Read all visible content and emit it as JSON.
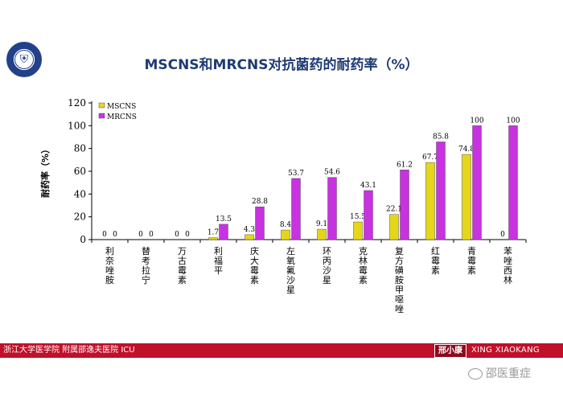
{
  "footer": {
    "left_text": "浙江大学医学院 附属邵逸夫医院 ICU",
    "badge_text": "邢小康",
    "right_text": "XING XIAOKANG"
  },
  "watermark": {
    "text": "邵医重症",
    "icon": "wechat-icon"
  },
  "logo": {
    "icon": "university-seal-icon"
  },
  "colors": {
    "mscns": "#e6d619",
    "mrcns": "#c832e0",
    "footer_bar": "#c0102a",
    "title": "#1f3b73"
  },
  "chart_data": {
    "type": "bar",
    "title": "MSCNS和MRCNS对抗菌药的耐药率（%）",
    "ylabel": "耐药率（%）",
    "xlabel": "",
    "ylim": [
      0,
      120
    ],
    "yticks": [
      0,
      20,
      40,
      60,
      80,
      100,
      120
    ],
    "grid": false,
    "legend_position": "top-left",
    "categories": [
      "利奈唑胺",
      "替考拉宁",
      "万古霉素",
      "利福平",
      "庆大霉素",
      "左氧氟沙星",
      "环丙沙星",
      "克林霉素",
      "复方磺胺甲噁唑",
      "红霉素",
      "青霉素",
      "苯唑西林"
    ],
    "series": [
      {
        "name": "MSCNS",
        "values": [
          0,
          0,
          0,
          1.7,
          4.3,
          8.4,
          9.1,
          15.5,
          22.1,
          67.7,
          74.8,
          0
        ],
        "labels": [
          "0",
          "0",
          "0",
          "1.7",
          "4.3",
          "8.4",
          "9.1",
          "15.5",
          "22.1",
          "67.7",
          "74.8",
          "0"
        ]
      },
      {
        "name": "MRCNS",
        "values": [
          0,
          0,
          0,
          13.5,
          28.8,
          53.7,
          54.6,
          43.1,
          61.2,
          85.8,
          100,
          100
        ],
        "labels": [
          "0",
          "0",
          "0",
          "13.5",
          "28.8",
          "53.7",
          "54.6",
          "43.1",
          "61.2",
          "85.8",
          "100",
          "100"
        ]
      }
    ]
  }
}
